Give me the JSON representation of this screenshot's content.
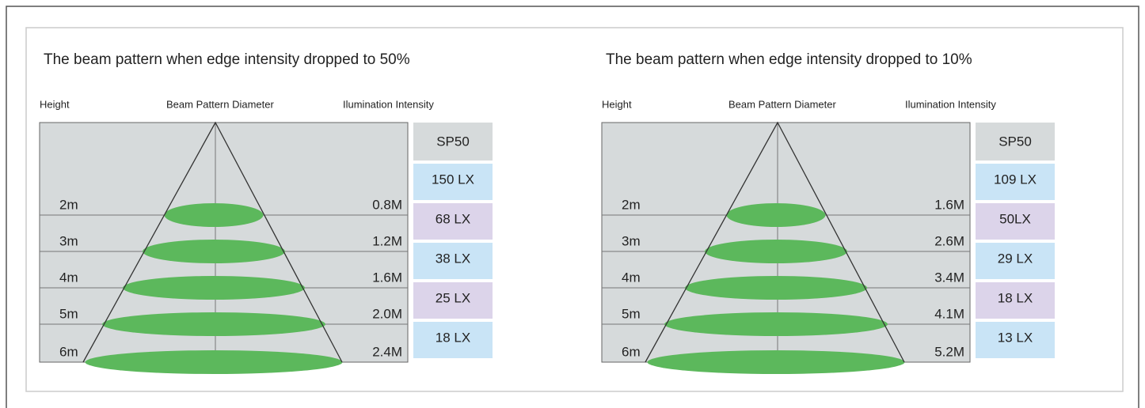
{
  "panels": [
    {
      "title": "The beam pattern when edge intensity dropped to 50%",
      "headers": {
        "height": "Height",
        "diameter": "Beam Pattern Diameter",
        "intensity": "Ilumination Intensity"
      },
      "label": "SP50",
      "rows": [
        {
          "height": "2m",
          "diameter": "0.8M",
          "lux": "150 LX"
        },
        {
          "height": "3m",
          "diameter": "1.2M",
          "lux": "68 LX"
        },
        {
          "height": "4m",
          "diameter": "1.6M",
          "lux": "38 LX"
        },
        {
          "height": "5m",
          "diameter": "2.0M",
          "lux": "25 LX"
        },
        {
          "height": "6m",
          "diameter": "2.4M",
          "lux": "18 LX"
        }
      ]
    },
    {
      "title": "The beam pattern when edge intensity dropped to 10%",
      "headers": {
        "height": "Height",
        "diameter": "Beam Pattern Diameter",
        "intensity": "Ilumination Intensity"
      },
      "label": "SP50",
      "rows": [
        {
          "height": "2m",
          "diameter": "1.6M",
          "lux": "109 LX"
        },
        {
          "height": "3m",
          "diameter": "2.6M",
          "lux": "50LX"
        },
        {
          "height": "4m",
          "diameter": "3.4M",
          "lux": "29 LX"
        },
        {
          "height": "5m",
          "diameter": "4.1M",
          "lux": "18 LX"
        },
        {
          "height": "6m",
          "diameter": "5.2M",
          "lux": "13 LX"
        }
      ]
    }
  ]
}
